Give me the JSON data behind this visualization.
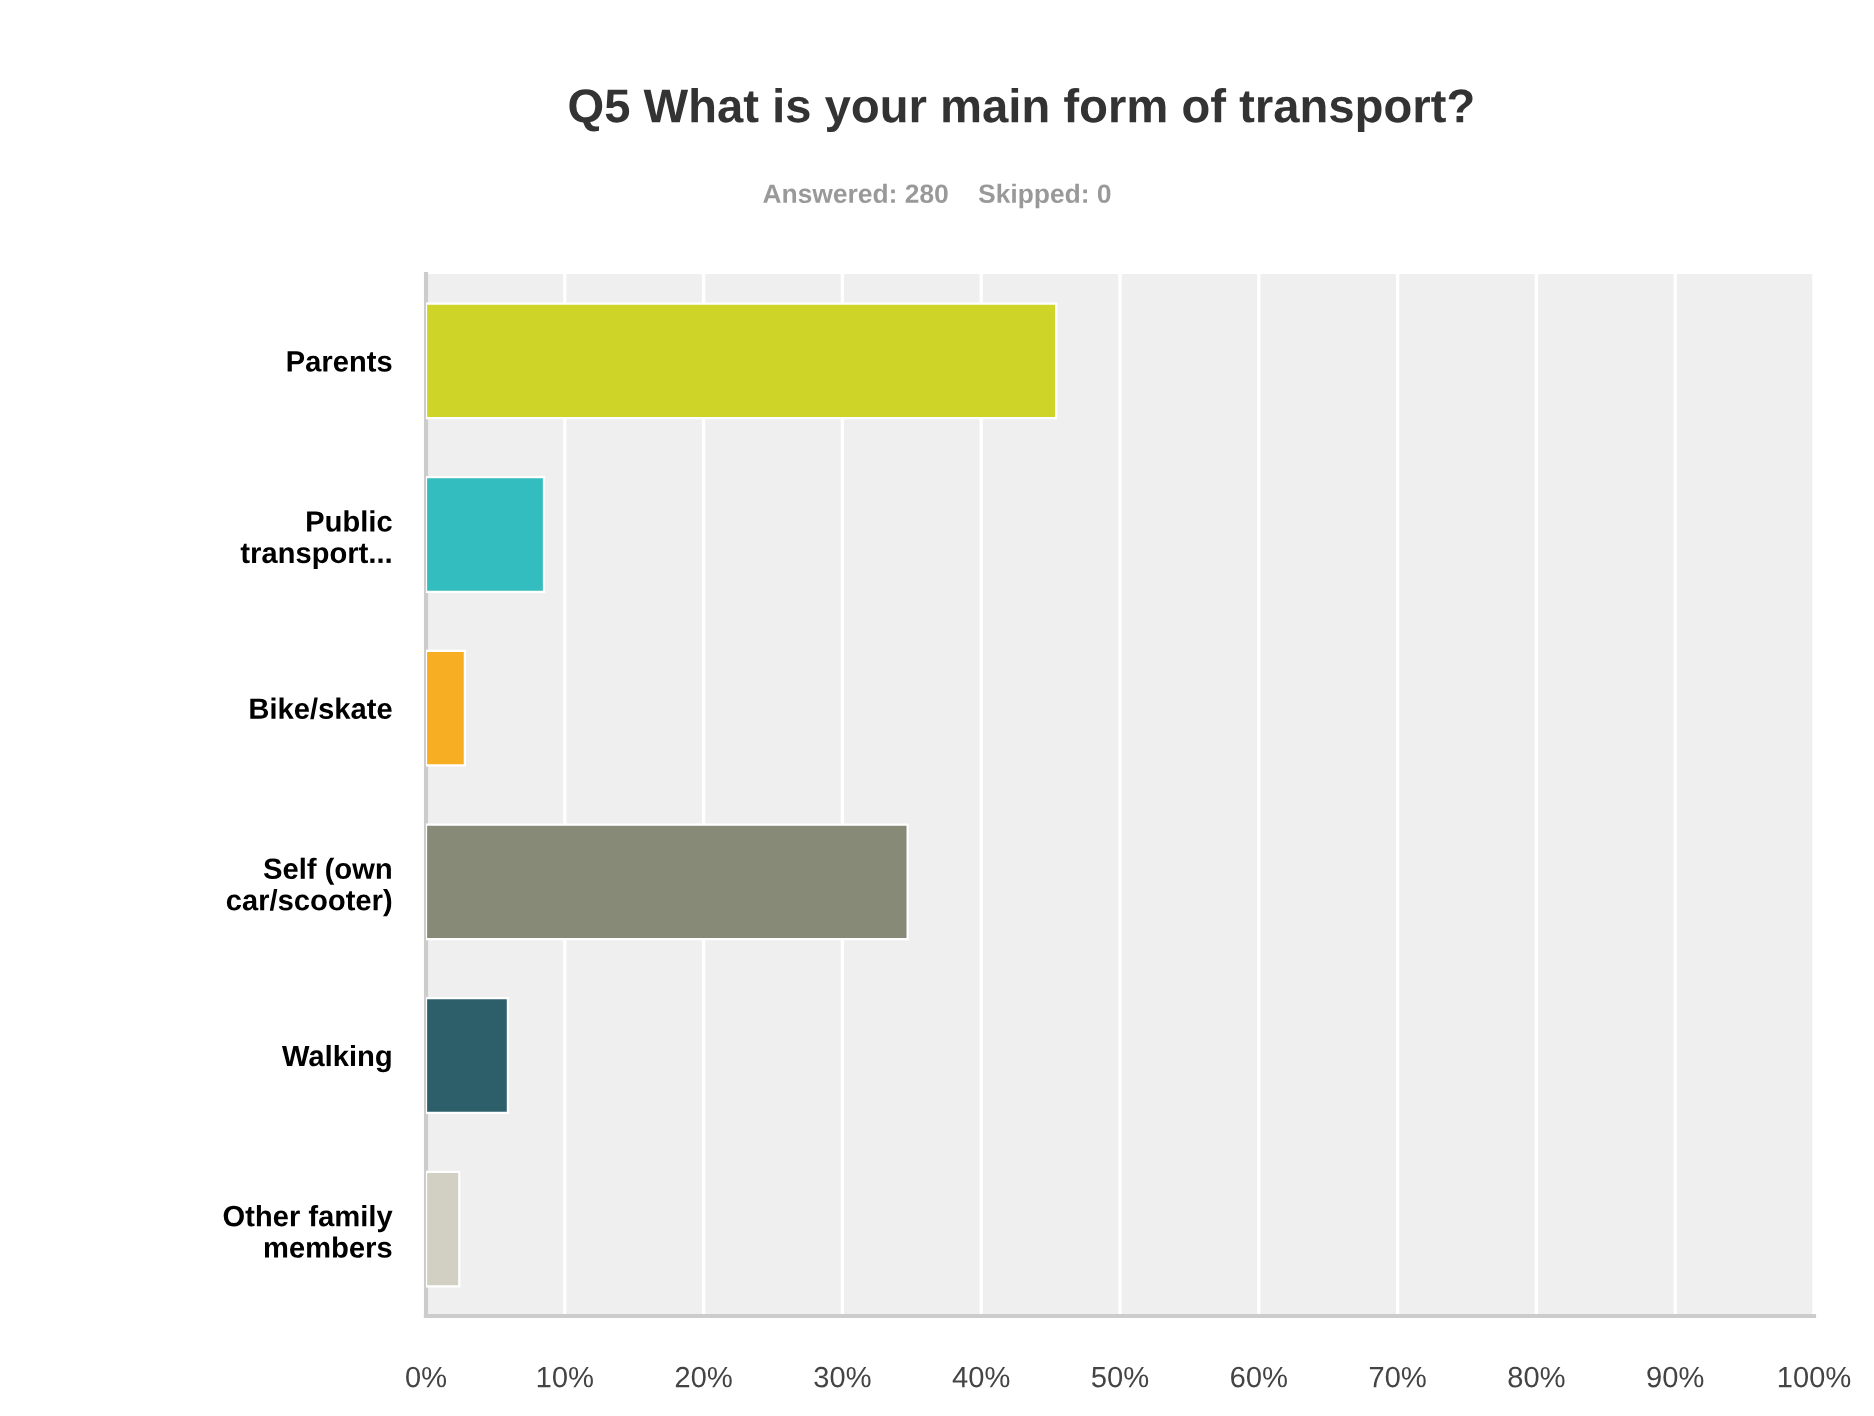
{
  "chart_data": {
    "type": "bar",
    "orientation": "horizontal",
    "title": "Q5 What is your main form of transport?",
    "subtitle": "Answered: 280    Skipped: 0",
    "categories": [
      "Parents",
      "Public\ntransport...",
      "Bike/skate",
      "Self (own\ncar/scooter)",
      "Walking",
      "Other family\nmembers"
    ],
    "values": [
      45.4,
      8.5,
      2.8,
      34.7,
      5.9,
      2.4
    ],
    "colors": [
      "#cfd428",
      "#33bdbf",
      "#f7ae22",
      "#888a78",
      "#2d5f6b",
      "#d1d0c2"
    ],
    "xlim": [
      0,
      100
    ],
    "xticks": [
      {
        "value": 0,
        "label": "0%"
      },
      {
        "value": 10,
        "label": "10%"
      },
      {
        "value": 20,
        "label": "20%"
      },
      {
        "value": 30,
        "label": "30%"
      },
      {
        "value": 40,
        "label": "40%"
      },
      {
        "value": 50,
        "label": "50%"
      },
      {
        "value": 60,
        "label": "60%"
      },
      {
        "value": 70,
        "label": "70%"
      },
      {
        "value": 80,
        "label": "80%"
      },
      {
        "value": 90,
        "label": "90%"
      },
      {
        "value": 100,
        "label": "100%"
      }
    ],
    "grid": "x"
  }
}
